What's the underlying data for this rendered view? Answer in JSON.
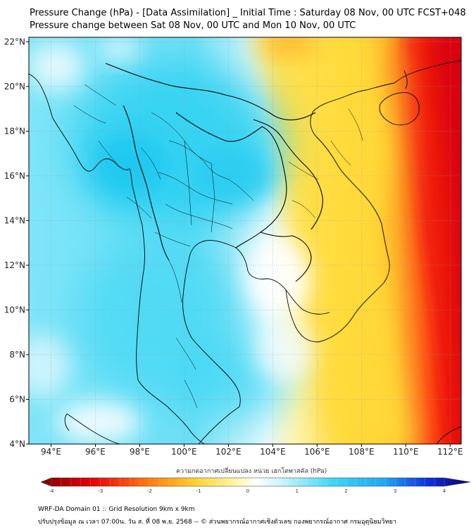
{
  "header": {
    "title_line1": "Pressure Change (hPa) - [Data Assimilation] _ Initial Time : Saturday 08 Nov, 00 UTC FCST+048",
    "title_line2": "Pressure change between Sat 08 Nov, 00 UTC and Mon 10 Nov, 00 UTC"
  },
  "map": {
    "lon_ticks": [
      "94°E",
      "96°E",
      "98°E",
      "100°E",
      "102°E",
      "104°E",
      "106°E",
      "108°E",
      "110°E",
      "112°E"
    ],
    "lat_ticks": [
      "22°N",
      "20°N",
      "18°N",
      "16°N",
      "14°N",
      "12°N",
      "10°N",
      "8°N",
      "6°N",
      "4°N"
    ],
    "lon_range": [
      93,
      112.5
    ],
    "lat_range": [
      4,
      22.2
    ],
    "field": "pressure change",
    "colors": {
      "negative_strong": "#e8000b",
      "negative_mild": "#ffe23c",
      "neutral": "#ffffff",
      "positive_mild": "#5bdcf5",
      "positive_strong": "#2bd0f2",
      "coastline": "#000000"
    }
  },
  "colorbar": {
    "title": "ความกดอากาศเปลี่ยนแปลง หน่วย เฮกโตพาสคัล (hPa)",
    "min": -4,
    "max": 4,
    "tick_labels": [
      "-4",
      "-3",
      "-2",
      "-1",
      "0",
      "1",
      "2",
      "3",
      "4"
    ]
  },
  "footer": {
    "line1": "WRF-DA Domain 01 :: Grid Resolution 9km x 9km",
    "line2": "ปรับปรุงข้อมูล ณ เวลา 07:00น. วัน ส. ที่ 08 พ.ย. 2568 -- © ส่วนพยากรณ์อากาศเชิงตัวเลข กองพยากรณ์อากาศ กรมอุตุนิยมวิทยา"
  }
}
